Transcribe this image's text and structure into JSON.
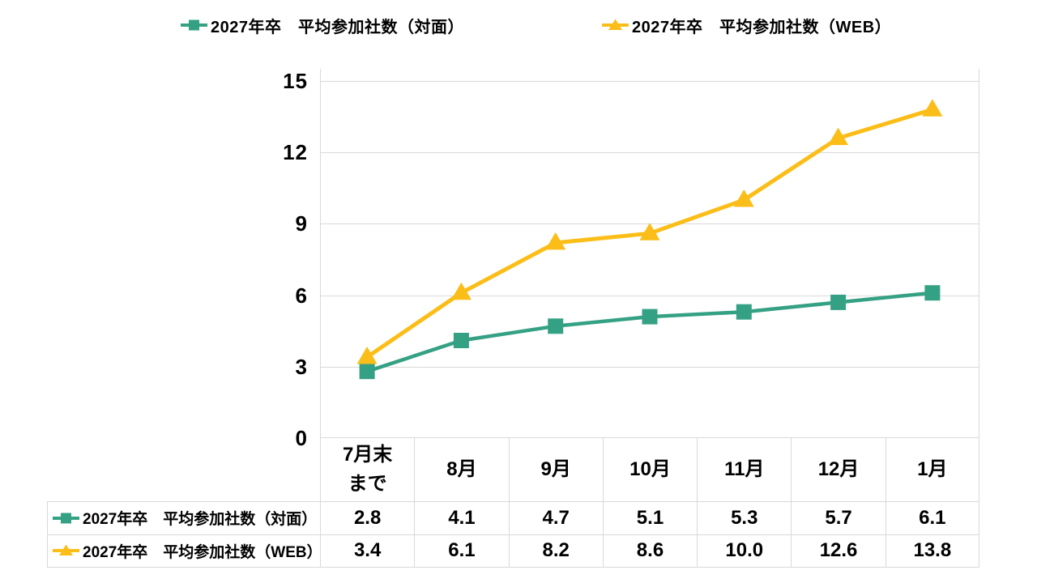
{
  "legend": {
    "items": [
      {
        "label": "2027年卒　平均参加社数（対面）",
        "marker": "square",
        "color": "#35A184"
      },
      {
        "label": "2027年卒　平均参加社数（WEB）",
        "marker": "triangle",
        "color": "#FBBD18"
      }
    ]
  },
  "chart_data": {
    "type": "line",
    "categories": [
      "7月末\nまで",
      "8月",
      "9月",
      "10月",
      "11月",
      "12月",
      "1月"
    ],
    "series": [
      {
        "name": "2027年卒　平均参加社数（対面）",
        "marker": "square",
        "color": "#35A184",
        "values": [
          2.8,
          4.1,
          4.7,
          5.1,
          5.3,
          5.7,
          6.1
        ]
      },
      {
        "name": "2027年卒　平均参加社数（WEB）",
        "marker": "triangle",
        "color": "#FBBD18",
        "values": [
          3.4,
          6.1,
          8.2,
          8.6,
          10.0,
          12.6,
          13.8
        ]
      }
    ],
    "title": "",
    "xlabel": "",
    "ylabel": "",
    "ylim": [
      0,
      15
    ],
    "yticks": [
      0,
      3,
      6,
      9,
      12,
      15
    ],
    "grid": true,
    "gridline_color": "#D9D9D9",
    "legend_position": "top",
    "data_table_shown": true
  },
  "table": {
    "rows": [
      {
        "label": "2027年卒　平均参加社数（対面）",
        "marker": "square",
        "color": "#35A184",
        "values": [
          "2.8",
          "4.1",
          "4.7",
          "5.1",
          "5.3",
          "5.7",
          "6.1"
        ]
      },
      {
        "label": "2027年卒　平均参加社数（WEB）",
        "marker": "triangle",
        "color": "#FBBD18",
        "values": [
          "3.4",
          "6.1",
          "8.2",
          "8.6",
          "10.0",
          "12.6",
          "13.8"
        ]
      }
    ]
  }
}
